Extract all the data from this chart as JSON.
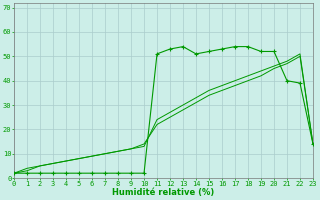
{
  "xlabel": "Humidité relative (%)",
  "background_color": "#cceee8",
  "grid_color": "#aacccc",
  "line_color": "#009900",
  "x_main": [
    0,
    1,
    2,
    3,
    4,
    5,
    6,
    7,
    8,
    9,
    10,
    11,
    12,
    13,
    14,
    15,
    16,
    17,
    18,
    19,
    20,
    21,
    22,
    23
  ],
  "y_main": [
    2,
    2,
    2,
    2,
    2,
    2,
    2,
    2,
    2,
    2,
    2,
    51,
    53,
    54,
    51,
    52,
    53,
    54,
    54,
    52,
    52,
    40,
    39,
    14
  ],
  "x_trend1": [
    0,
    1,
    2,
    3,
    4,
    5,
    6,
    7,
    8,
    9,
    10,
    11,
    12,
    13,
    14,
    15,
    16,
    17,
    18,
    19,
    20,
    21,
    22,
    23
  ],
  "y_trend1": [
    2,
    4,
    5,
    6,
    7,
    8,
    9,
    10,
    11,
    12,
    13,
    24,
    27,
    30,
    33,
    36,
    38,
    40,
    42,
    44,
    46,
    48,
    51,
    14
  ],
  "x_trend2": [
    0,
    1,
    2,
    3,
    4,
    5,
    6,
    7,
    8,
    9,
    10,
    11,
    12,
    13,
    14,
    15,
    16,
    17,
    18,
    19,
    20,
    21,
    22,
    23
  ],
  "y_trend2": [
    2,
    3,
    5,
    6,
    7,
    8,
    9,
    10,
    11,
    12,
    14,
    22,
    25,
    28,
    31,
    34,
    36,
    38,
    40,
    42,
    45,
    47,
    50,
    14
  ],
  "xlim": [
    0,
    23
  ],
  "ylim": [
    0,
    72
  ],
  "yticks": [
    0,
    10,
    20,
    30,
    40,
    50,
    60,
    70
  ],
  "xticks": [
    0,
    1,
    2,
    3,
    4,
    5,
    6,
    7,
    8,
    9,
    10,
    11,
    12,
    13,
    14,
    15,
    16,
    17,
    18,
    19,
    20,
    21,
    22,
    23
  ],
  "tick_fontsize": 5.0,
  "xlabel_fontsize": 6.0
}
